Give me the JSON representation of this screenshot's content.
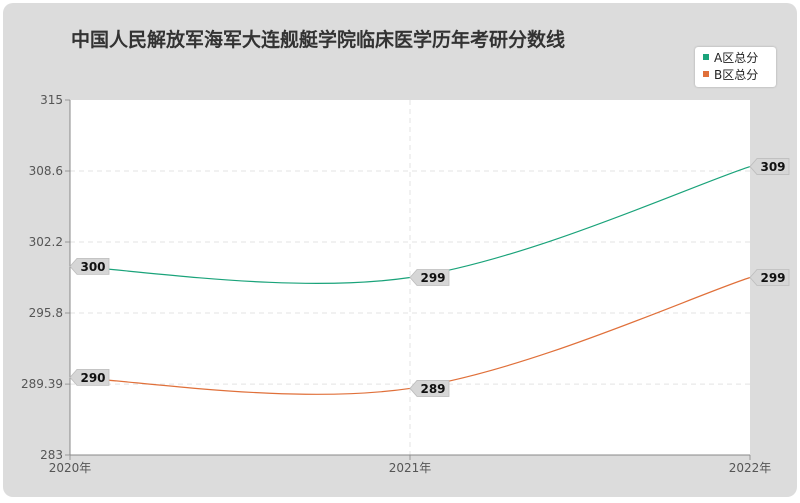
{
  "chart_data": {
    "type": "line",
    "title": "中国人民解放军海军大连舰艇学院临床医学历年考研分数线",
    "xlabel": "",
    "ylabel": "",
    "categories": [
      "2020年",
      "2021年",
      "2022年"
    ],
    "y_ticks": [
      "315",
      "308.6",
      "302.2",
      "295.8",
      "289.39",
      "283"
    ],
    "ylim": [
      283,
      315
    ],
    "grid": true,
    "legend_position": "top-right",
    "series": [
      {
        "name": "A区总分",
        "color": "#1aa37a",
        "values": [
          300,
          299,
          309
        ],
        "labels": [
          "300",
          "299",
          "309"
        ]
      },
      {
        "name": "B区总分",
        "color": "#e0703a",
        "values": [
          290,
          289,
          299
        ],
        "labels": [
          "290",
          "289",
          "299"
        ]
      }
    ]
  }
}
